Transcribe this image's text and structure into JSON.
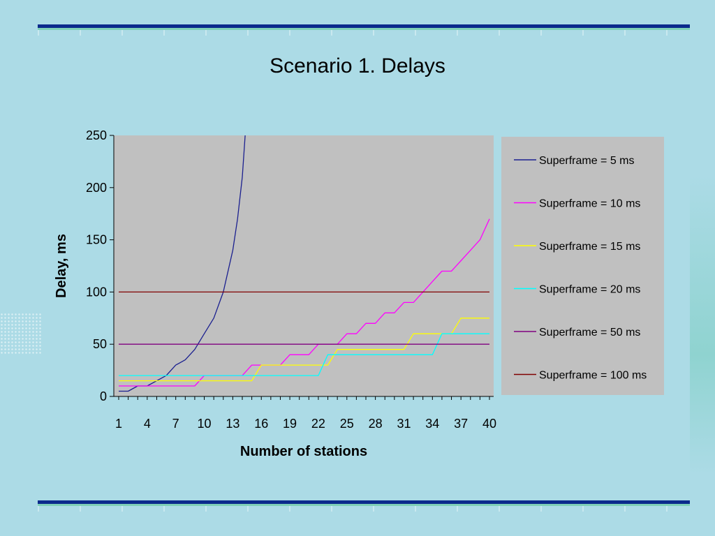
{
  "slide": {
    "title": "Scenario 1. Delays"
  },
  "colors": {
    "background": "#acdbe6",
    "plot_area": "#c0c0c0",
    "legend_box": "#c0c0c0",
    "rule": "#0b2a8c"
  },
  "chart_data": {
    "type": "line",
    "title": "",
    "xlabel": "Number of stations",
    "ylabel": "Delay, ms",
    "xlim": [
      1,
      40
    ],
    "ylim": [
      0,
      250
    ],
    "grid": false,
    "legend_position": "right",
    "x_ticks": [
      "1",
      "4",
      "7",
      "10",
      "13",
      "16",
      "19",
      "22",
      "25",
      "28",
      "31",
      "34",
      "37",
      "40"
    ],
    "y_ticks": [
      "0",
      "50",
      "100",
      "150",
      "200",
      "250"
    ],
    "series": [
      {
        "name": "Superframe = 5 ms",
        "color": "#1a1f8f",
        "x": [
          1,
          2,
          3,
          4,
          5,
          6,
          7,
          8,
          9,
          10,
          11,
          12,
          13,
          13.5,
          14,
          14.3
        ],
        "y": [
          5,
          5,
          10,
          10,
          15,
          20,
          30,
          35,
          45,
          60,
          75,
          100,
          140,
          170,
          210,
          250
        ]
      },
      {
        "name": "Superframe = 10 ms",
        "color": "#ff00ff",
        "x": [
          1,
          9,
          10,
          14,
          15,
          17,
          18,
          19,
          21,
          22,
          24,
          25,
          26,
          27,
          28,
          29,
          30,
          31,
          32,
          33,
          34,
          35,
          36,
          37,
          38,
          39,
          40
        ],
        "y": [
          10,
          10,
          20,
          20,
          30,
          30,
          30,
          40,
          40,
          50,
          50,
          60,
          60,
          70,
          70,
          80,
          80,
          90,
          90,
          100,
          110,
          120,
          120,
          130,
          140,
          150,
          170
        ]
      },
      {
        "name": "Superframe = 15 ms",
        "color": "#ffff00",
        "x": [
          1,
          15,
          16,
          23,
          24,
          31,
          32,
          35,
          36,
          37,
          40
        ],
        "y": [
          15,
          15,
          30,
          30,
          45,
          45,
          60,
          60,
          60,
          75,
          75
        ]
      },
      {
        "name": "Superframe = 20 ms",
        "color": "#00ffff",
        "x": [
          1,
          22,
          23,
          34,
          35,
          40
        ],
        "y": [
          20,
          20,
          40,
          40,
          60,
          60
        ]
      },
      {
        "name": "Superframe = 50 ms",
        "color": "#800080",
        "x": [
          1,
          40
        ],
        "y": [
          50,
          50
        ]
      },
      {
        "name": "Superframe = 100 ms",
        "color": "#800000",
        "x": [
          1,
          40
        ],
        "y": [
          100,
          100
        ]
      }
    ]
  }
}
